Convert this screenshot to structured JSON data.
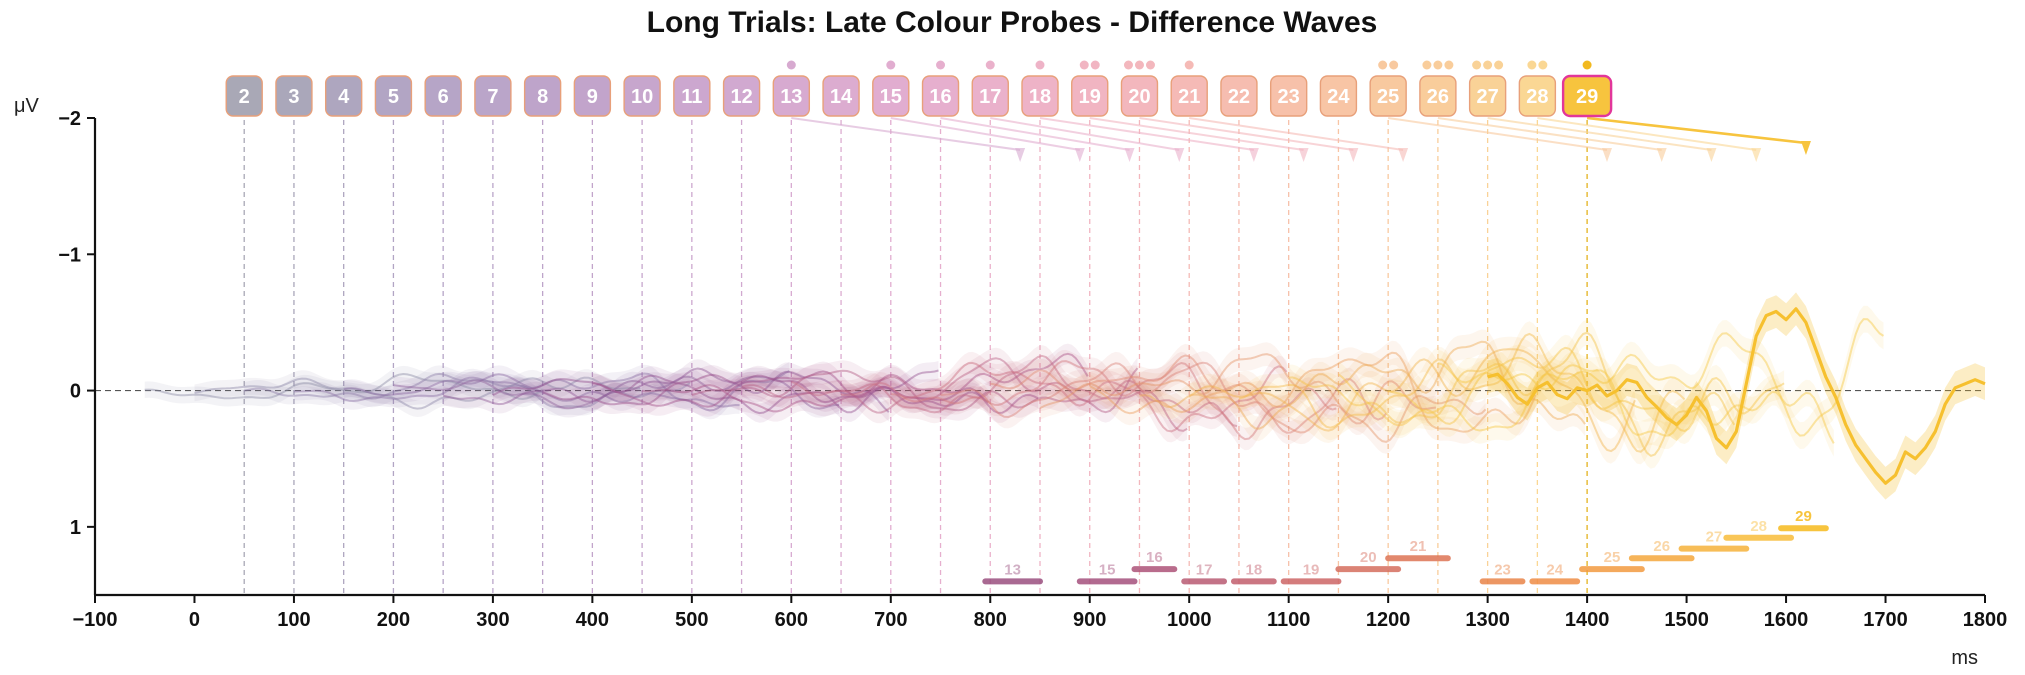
{
  "chart_data": {
    "type": "line",
    "title": "Long Trials: Late Colour Probes - Difference Waves",
    "ylabel": "μV",
    "xlabel": "ms",
    "xlim": [
      -100,
      1800
    ],
    "ylim": [
      -2,
      1.5
    ],
    "y_inverted": true,
    "x_ticks": [
      "−100",
      "0",
      "100",
      "200",
      "300",
      "400",
      "500",
      "600",
      "700",
      "800",
      "900",
      "1000",
      "1100",
      "1200",
      "1300",
      "1400",
      "1500",
      "1600",
      "1700",
      "1800"
    ],
    "x_tick_values": [
      -100,
      0,
      100,
      200,
      300,
      400,
      500,
      600,
      700,
      800,
      900,
      1000,
      1100,
      1200,
      1300,
      1400,
      1500,
      1600,
      1700,
      1800
    ],
    "y_ticks": [
      "−2",
      "−1",
      "0",
      "1"
    ],
    "y_tick_values": [
      -2,
      -1,
      0,
      1
    ],
    "zero_line": true,
    "probes": [
      {
        "label": "2",
        "onset": 50,
        "color": "#a9a8b6",
        "dots": 0
      },
      {
        "label": "3",
        "onset": 100,
        "color": "#aaa7ba",
        "dots": 0
      },
      {
        "label": "4",
        "onset": 150,
        "color": "#aea6bf",
        "dots": 0
      },
      {
        "label": "5",
        "onset": 200,
        "color": "#b2a5c4",
        "dots": 0
      },
      {
        "label": "6",
        "onset": 250,
        "color": "#b6a5c7",
        "dots": 0
      },
      {
        "label": "7",
        "onset": 300,
        "color": "#baa5c9",
        "dots": 0
      },
      {
        "label": "8",
        "onset": 350,
        "color": "#bea4ca",
        "dots": 0
      },
      {
        "label": "9",
        "onset": 400,
        "color": "#c2a4cb",
        "dots": 0
      },
      {
        "label": "10",
        "onset": 450,
        "color": "#c7a6cd",
        "dots": 0
      },
      {
        "label": "11",
        "onset": 500,
        "color": "#cca7cf",
        "dots": 0
      },
      {
        "label": "12",
        "onset": 550,
        "color": "#d1a9d0",
        "dots": 0
      },
      {
        "label": "13",
        "onset": 600,
        "color": "#d7aad0",
        "dots": 1
      },
      {
        "label": "14",
        "onset": 650,
        "color": "#dcacd0",
        "dots": 0
      },
      {
        "label": "15",
        "onset": 700,
        "color": "#e1add0",
        "dots": 1
      },
      {
        "label": "16",
        "onset": 750,
        "color": "#e6afce",
        "dots": 1
      },
      {
        "label": "17",
        "onset": 800,
        "color": "#eab1cb",
        "dots": 1
      },
      {
        "label": "18",
        "onset": 850,
        "color": "#eeb3c7",
        "dots": 1
      },
      {
        "label": "19",
        "onset": 900,
        "color": "#f1b5c2",
        "dots": 2
      },
      {
        "label": "20",
        "onset": 950,
        "color": "#f3b7bd",
        "dots": 3
      },
      {
        "label": "21",
        "onset": 1000,
        "color": "#f5bab6",
        "dots": 1
      },
      {
        "label": "22",
        "onset": 1050,
        "color": "#f6bdb0",
        "dots": 0
      },
      {
        "label": "23",
        "onset": 1100,
        "color": "#f7c1aa",
        "dots": 0
      },
      {
        "label": "24",
        "onset": 1150,
        "color": "#f8c5a5",
        "dots": 0
      },
      {
        "label": "25",
        "onset": 1200,
        "color": "#f8c99f",
        "dots": 2
      },
      {
        "label": "26",
        "onset": 1250,
        "color": "#f9cd9b",
        "dots": 3
      },
      {
        "label": "27",
        "onset": 1300,
        "color": "#f9d297",
        "dots": 3
      },
      {
        "label": "28",
        "onset": 1350,
        "color": "#fad794",
        "dots": 2
      },
      {
        "label": "29",
        "onset": 1400,
        "color": "#f7c43e",
        "dots": 1,
        "highlight": true
      }
    ],
    "sig_bars": [
      {
        "label": "13",
        "start": 795,
        "end": 850,
        "y": 1.4,
        "color": "#9a4f7f"
      },
      {
        "label": "15",
        "start": 890,
        "end": 945,
        "y": 1.4,
        "color": "#a5507c"
      },
      {
        "label": "16",
        "start": 945,
        "end": 985,
        "y": 1.31,
        "color": "#ad5278"
      },
      {
        "label": "17",
        "start": 995,
        "end": 1035,
        "y": 1.4,
        "color": "#b95a72"
      },
      {
        "label": "18",
        "start": 1045,
        "end": 1085,
        "y": 1.4,
        "color": "#c25e6c"
      },
      {
        "label": "19",
        "start": 1095,
        "end": 1150,
        "y": 1.4,
        "color": "#cc6565"
      },
      {
        "label": "20",
        "start": 1150,
        "end": 1210,
        "y": 1.31,
        "color": "#d56d5d"
      },
      {
        "label": "21",
        "start": 1200,
        "end": 1260,
        "y": 1.23,
        "color": "#dd7354"
      },
      {
        "label": "23",
        "start": 1295,
        "end": 1335,
        "y": 1.4,
        "color": "#e98448"
      },
      {
        "label": "24",
        "start": 1345,
        "end": 1390,
        "y": 1.4,
        "color": "#ee8c44"
      },
      {
        "label": "25",
        "start": 1395,
        "end": 1455,
        "y": 1.31,
        "color": "#f29a3f"
      },
      {
        "label": "26",
        "start": 1445,
        "end": 1505,
        "y": 1.23,
        "color": "#f5a73c"
      },
      {
        "label": "27",
        "start": 1495,
        "end": 1560,
        "y": 1.16,
        "color": "#f6b23a"
      },
      {
        "label": "28",
        "start": 1540,
        "end": 1605,
        "y": 1.08,
        "color": "#f8bc3a"
      },
      {
        "label": "29",
        "start": 1595,
        "end": 1640,
        "y": 1.01,
        "color": "#f7c43e"
      }
    ],
    "leader_lines": [
      {
        "from_probe": "13",
        "to_x": 830,
        "color": "#d7aad0"
      },
      {
        "from_probe": "15",
        "to_x": 890,
        "color": "#e1add0"
      },
      {
        "from_probe": "16",
        "to_x": 940,
        "color": "#e6afce"
      },
      {
        "from_probe": "17",
        "to_x": 990,
        "color": "#eab1cb"
      },
      {
        "from_probe": "18",
        "to_x": 1065,
        "color": "#eeb3c7"
      },
      {
        "from_probe": "19",
        "to_x": 1115,
        "color": "#f1b5c2"
      },
      {
        "from_probe": "20",
        "to_x": 1165,
        "color": "#f3b7bd"
      },
      {
        "from_probe": "21",
        "to_x": 1215,
        "color": "#f5bab6"
      },
      {
        "from_probe": "25",
        "to_x": 1420,
        "color": "#f8c99f"
      },
      {
        "from_probe": "26",
        "to_x": 1475,
        "color": "#f9cd9b"
      },
      {
        "from_probe": "27",
        "to_x": 1525,
        "color": "#f9d297"
      },
      {
        "from_probe": "28",
        "to_x": 1570,
        "color": "#fad794"
      },
      {
        "from_probe": "29",
        "to_x": 1620,
        "color": "#f7c43e"
      }
    ],
    "series": [
      {
        "start": -50,
        "end": 350,
        "amp": 0.14,
        "color": "#8e8ea6",
        "seed": 3
      },
      {
        "start": 0,
        "end": 450,
        "amp": 0.15,
        "color": "#8f8aa8",
        "seed": 7
      },
      {
        "start": 50,
        "end": 500,
        "amp": 0.16,
        "color": "#8e7fa8",
        "seed": 11
      },
      {
        "start": 100,
        "end": 550,
        "amp": 0.17,
        "color": "#8d74a6",
        "seed": 17
      },
      {
        "start": 150,
        "end": 600,
        "amp": 0.18,
        "color": "#8c6aa2",
        "seed": 23
      },
      {
        "start": 200,
        "end": 650,
        "amp": 0.19,
        "color": "#8d619c",
        "seed": 29
      },
      {
        "start": 250,
        "end": 700,
        "amp": 0.2,
        "color": "#905896",
        "seed": 31
      },
      {
        "start": 300,
        "end": 750,
        "amp": 0.21,
        "color": "#955290",
        "seed": 37
      },
      {
        "start": 350,
        "end": 800,
        "amp": 0.22,
        "color": "#9b4f8c",
        "seed": 41
      },
      {
        "start": 400,
        "end": 850,
        "amp": 0.23,
        "color": "#a24f8a",
        "seed": 43
      },
      {
        "start": 450,
        "end": 900,
        "amp": 0.24,
        "color": "#aa5488",
        "seed": 47
      },
      {
        "start": 500,
        "end": 950,
        "amp": 0.26,
        "color": "#b25a86",
        "seed": 53
      },
      {
        "start": 550,
        "end": 1000,
        "amp": 0.28,
        "color": "#bb6184",
        "seed": 59
      },
      {
        "start": 600,
        "end": 1050,
        "amp": 0.3,
        "color": "#c36882",
        "seed": 61
      },
      {
        "start": 650,
        "end": 1100,
        "amp": 0.32,
        "color": "#cb6f80",
        "seed": 67
      },
      {
        "start": 700,
        "end": 1150,
        "amp": 0.34,
        "color": "#d2777c",
        "seed": 71
      },
      {
        "start": 750,
        "end": 1200,
        "amp": 0.36,
        "color": "#d98077",
        "seed": 73
      },
      {
        "start": 800,
        "end": 1250,
        "amp": 0.38,
        "color": "#df8a70",
        "seed": 79
      },
      {
        "start": 850,
        "end": 1300,
        "amp": 0.4,
        "color": "#e59468",
        "seed": 83
      },
      {
        "start": 900,
        "end": 1350,
        "amp": 0.42,
        "color": "#ea9f5f",
        "seed": 89
      },
      {
        "start": 950,
        "end": 1400,
        "amp": 0.44,
        "color": "#eeaa55",
        "seed": 97
      },
      {
        "start": 1000,
        "end": 1450,
        "amp": 0.46,
        "color": "#f1b34e",
        "seed": 101
      },
      {
        "start": 1050,
        "end": 1500,
        "amp": 0.48,
        "color": "#f3ba4a",
        "seed": 103
      },
      {
        "start": 1100,
        "end": 1550,
        "amp": 0.5,
        "color": "#f5c047",
        "seed": 107
      },
      {
        "start": 1150,
        "end": 1600,
        "amp": 0.52,
        "color": "#f6c445",
        "seed": 109
      },
      {
        "start": 1200,
        "end": 1650,
        "amp": 0.55,
        "color": "#f7c744",
        "seed": 113
      },
      {
        "start": 1250,
        "end": 1700,
        "amp": 0.55,
        "color": "#f7c843",
        "seed": 127
      }
    ],
    "highlight_series": {
      "color": "#f6c02f",
      "x": [
        1300,
        1310,
        1320,
        1330,
        1340,
        1350,
        1360,
        1370,
        1380,
        1390,
        1400,
        1410,
        1420,
        1430,
        1440,
        1450,
        1460,
        1470,
        1480,
        1490,
        1500,
        1510,
        1520,
        1530,
        1540,
        1550,
        1560,
        1570,
        1580,
        1590,
        1600,
        1610,
        1620,
        1630,
        1640,
        1650,
        1660,
        1670,
        1680,
        1690,
        1700,
        1710,
        1720,
        1730,
        1740,
        1750,
        1760,
        1770,
        1780,
        1790,
        1800
      ],
      "y": [
        -0.1,
        -0.12,
        -0.05,
        0.05,
        0.1,
        -0.02,
        -0.06,
        0.03,
        0.06,
        -0.02,
        0.0,
        -0.04,
        0.04,
        0.0,
        -0.08,
        -0.06,
        0.05,
        0.12,
        0.2,
        0.25,
        0.18,
        0.05,
        0.15,
        0.35,
        0.42,
        0.3,
        -0.05,
        -0.4,
        -0.55,
        -0.58,
        -0.52,
        -0.6,
        -0.5,
        -0.3,
        -0.1,
        0.05,
        0.25,
        0.4,
        0.5,
        0.6,
        0.68,
        0.62,
        0.45,
        0.5,
        0.42,
        0.3,
        0.1,
        -0.02,
        -0.05,
        -0.08,
        -0.05
      ]
    }
  }
}
